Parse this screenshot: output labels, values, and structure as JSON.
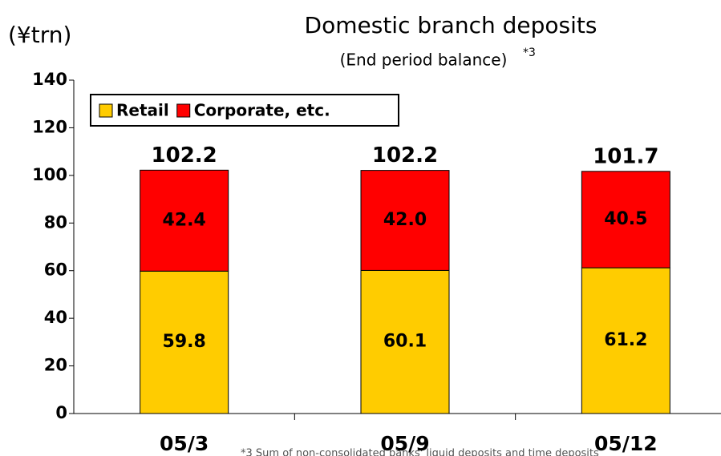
{
  "chart_data": {
    "type": "stacked_bar",
    "title": "Domestic branch deposits",
    "subtitle": "(End period balance)",
    "subtitle_note": "*3",
    "y_axis_label": "(¥trn)",
    "footnote": "*3  Sum of non-consolidated banks' liquid deposits and time deposits",
    "categories": [
      "05/3",
      "05/9",
      "05/12"
    ],
    "series": [
      {
        "name": "Retail",
        "color": "#ffcc00",
        "values": [
          59.8,
          60.1,
          61.2
        ],
        "value_labels": [
          "59.8",
          "60.1",
          "61.2"
        ]
      },
      {
        "name": "Corporate, etc.",
        "color": "#ff0000",
        "values": [
          42.4,
          42.0,
          40.5
        ],
        "value_labels": [
          "42.4",
          "42.0",
          "40.5"
        ]
      }
    ],
    "totals": [
      102.2,
      102.2,
      101.7
    ],
    "ylim": [
      0,
      140
    ],
    "yticks": [
      0,
      20,
      40,
      60,
      80,
      100,
      120,
      140
    ],
    "legend": "top-left"
  }
}
